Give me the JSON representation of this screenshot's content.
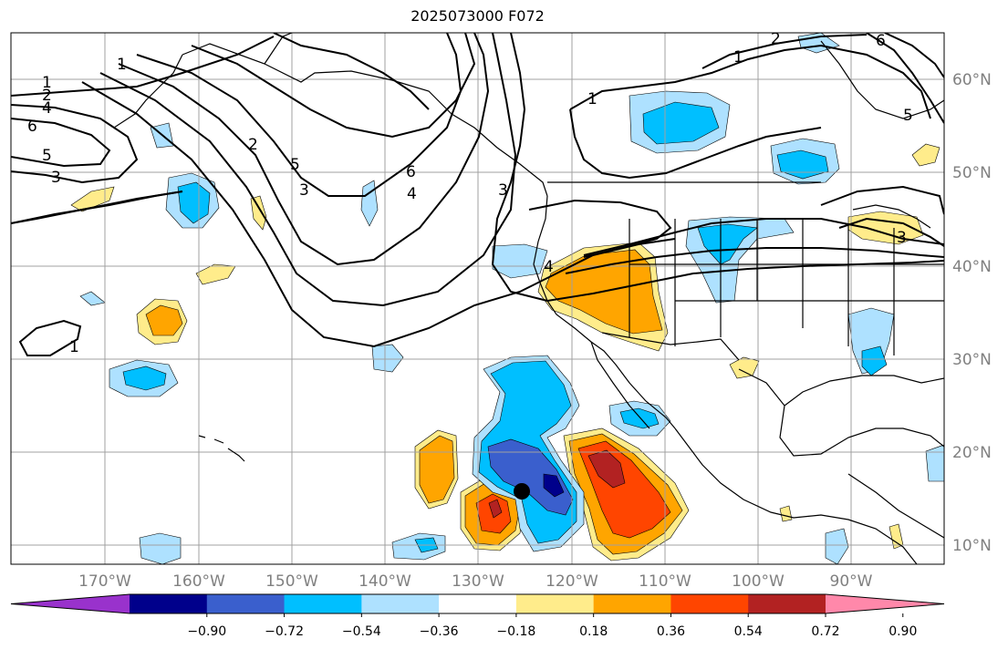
{
  "title": "2025073000 F072",
  "lon_labels": [
    "170°W",
    "160°W",
    "150°W",
    "140°W",
    "130°W",
    "120°W",
    "110°W",
    "100°W",
    "90°W"
  ],
  "lat_labels": [
    "10°N",
    "20°N",
    "30°N",
    "40°N",
    "50°N",
    "60°N"
  ],
  "colorbar": {
    "colors": [
      "#9932cc",
      "#00008b",
      "#3a5fcd",
      "#00bfff",
      "#aee1ff",
      "#ffffff",
      "#ffec8b",
      "#ffa500",
      "#ff4500",
      "#b22222",
      "#ff88aa"
    ],
    "tick_labels": [
      "−0.90",
      "−0.72",
      "−0.54",
      "−0.36",
      "−0.18",
      "0.18",
      "0.36",
      "0.54",
      "0.72",
      "0.90"
    ]
  },
  "contour_labels": [
    "1",
    "2",
    "4",
    "6",
    "5",
    "3",
    "1",
    "2",
    "5",
    "3",
    "6",
    "4",
    "3",
    "1",
    "1",
    "2",
    "6",
    "5",
    "4",
    "3",
    "1"
  ],
  "marker": "storm-center-dot"
}
